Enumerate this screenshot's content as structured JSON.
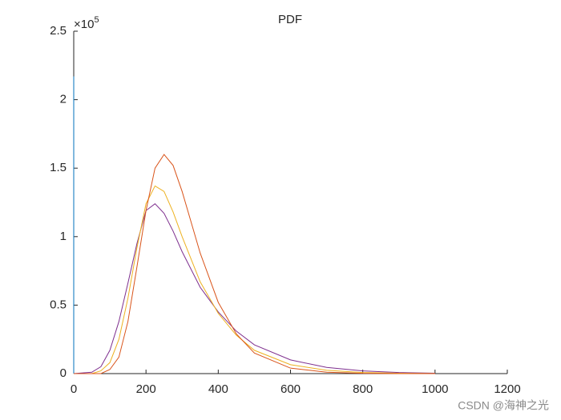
{
  "chart_data": {
    "type": "line",
    "title": "PDF",
    "y_exponent": {
      "base": "×10",
      "power": "5"
    },
    "xlim": [
      0,
      1200
    ],
    "xticks": [
      0,
      200,
      400,
      600,
      800,
      1000,
      1200
    ],
    "ylim": [
      0,
      2.5
    ],
    "yticks": [
      0,
      0.5,
      1,
      1.5,
      2,
      2.5
    ],
    "series": [
      {
        "color": "#0072bd",
        "x": [
          0,
          0
        ],
        "values": [
          2.17,
          0
        ]
      },
      {
        "color": "#7e2f8e",
        "x": [
          0,
          50,
          75,
          100,
          125,
          150,
          175,
          200,
          225,
          250,
          275,
          300,
          350,
          400,
          450,
          500,
          600,
          700,
          800,
          900,
          1000
        ],
        "values": [
          0,
          0.01,
          0.05,
          0.17,
          0.38,
          0.66,
          0.95,
          1.19,
          1.24,
          1.17,
          1.04,
          0.89,
          0.63,
          0.45,
          0.31,
          0.21,
          0.1,
          0.045,
          0.02,
          0.008,
          0.003
        ]
      },
      {
        "color": "#edb120",
        "x": [
          0,
          50,
          75,
          100,
          125,
          150,
          175,
          200,
          225,
          250,
          275,
          300,
          350,
          400,
          450,
          500,
          600,
          700,
          800,
          900,
          1000
        ],
        "values": [
          0,
          0,
          0.02,
          0.08,
          0.25,
          0.55,
          0.92,
          1.24,
          1.37,
          1.33,
          1.18,
          1.0,
          0.67,
          0.44,
          0.28,
          0.17,
          0.065,
          0.024,
          0.008,
          0.003,
          0.001
        ]
      },
      {
        "color": "#d95319",
        "x": [
          0,
          50,
          75,
          100,
          125,
          150,
          175,
          200,
          225,
          250,
          275,
          300,
          350,
          400,
          450,
          500,
          600,
          700,
          800,
          900,
          1000
        ],
        "values": [
          0,
          0,
          0,
          0.03,
          0.12,
          0.38,
          0.78,
          1.19,
          1.5,
          1.6,
          1.52,
          1.33,
          0.88,
          0.52,
          0.29,
          0.15,
          0.04,
          0.01,
          0.002,
          0,
          0
        ]
      }
    ]
  },
  "watermark": "CSDN @海神之光"
}
